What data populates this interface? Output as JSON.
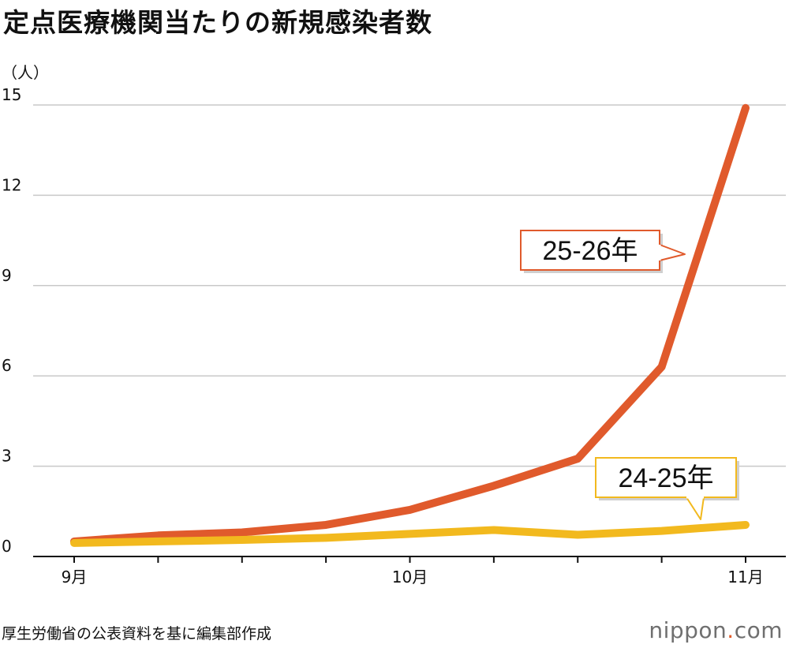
{
  "chart_data": {
    "type": "line",
    "title": "定点医療機関当たりの新規感染者数",
    "ylabel": "（人）",
    "ylim": [
      0,
      15
    ],
    "yticks": [
      0,
      3,
      6,
      9,
      12,
      15
    ],
    "x": [
      1,
      2,
      3,
      4,
      5,
      6,
      7,
      8,
      9
    ],
    "xticks": [
      {
        "x": 1,
        "label": "9月"
      },
      {
        "x": 5,
        "label": "10月"
      },
      {
        "x": 9,
        "label": "11月"
      }
    ],
    "series": [
      {
        "name": "25-26年",
        "color": "#e05a2c",
        "values": [
          0.5,
          0.7,
          0.8,
          1.05,
          1.55,
          2.35,
          3.25,
          6.3,
          14.9
        ]
      },
      {
        "name": "24-25年",
        "color": "#f2b91e",
        "values": [
          0.45,
          0.5,
          0.55,
          0.62,
          0.75,
          0.88,
          0.72,
          0.85,
          1.05
        ]
      }
    ],
    "grid": true
  },
  "source": "厚生労働省の公表資料を基に編集部作成",
  "brand": {
    "main": "nippon",
    "dot": ".",
    "domain": "com"
  }
}
